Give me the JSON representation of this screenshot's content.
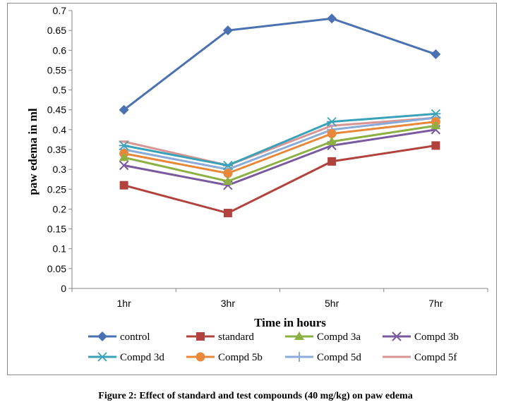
{
  "caption": "Figure 2: Effect of standard and test compounds (40 mg/kg) on paw edema",
  "chart_data": {
    "type": "line",
    "title": "",
    "xlabel": "Time in hours",
    "ylabel": "paw edema in ml",
    "categories": [
      "1hr",
      "3hr",
      "5hr",
      "7hr"
    ],
    "ylim": [
      0,
      0.7
    ],
    "ytick_step": 0.05,
    "yticks": [
      "0",
      "0.05",
      "0.1",
      "0.15",
      "0.2",
      "0.25",
      "0.3",
      "0.35",
      "0.4",
      "0.45",
      "0.5",
      "0.55",
      "0.6",
      "0.65",
      "0.7"
    ],
    "grid": false,
    "legend_position": "bottom",
    "series": [
      {
        "name": "control",
        "values": [
          0.45,
          0.65,
          0.68,
          0.59
        ],
        "color": "#4a72b0",
        "marker": "diamond"
      },
      {
        "name": "standard",
        "values": [
          0.26,
          0.19,
          0.32,
          0.36
        ],
        "color": "#b2423e",
        "marker": "square"
      },
      {
        "name": "Compd 3a",
        "values": [
          0.33,
          0.27,
          0.37,
          0.41
        ],
        "color": "#8cb043",
        "marker": "triangle"
      },
      {
        "name": "Compd 3b",
        "values": [
          0.31,
          0.26,
          0.36,
          0.4
        ],
        "color": "#7a5a9e",
        "marker": "x"
      },
      {
        "name": "Compd 3d",
        "values": [
          0.36,
          0.31,
          0.42,
          0.44
        ],
        "color": "#3aa2b8",
        "marker": "star"
      },
      {
        "name": "Compd 5b",
        "values": [
          0.34,
          0.29,
          0.39,
          0.42
        ],
        "color": "#e8883a",
        "marker": "circle"
      },
      {
        "name": "Compd 5d",
        "values": [
          0.35,
          0.3,
          0.4,
          0.43
        ],
        "color": "#8aabd8",
        "marker": "plus"
      },
      {
        "name": "Compd 5f",
        "values": [
          0.37,
          0.31,
          0.41,
          0.43
        ],
        "color": "#d99593",
        "marker": "dash"
      }
    ]
  }
}
